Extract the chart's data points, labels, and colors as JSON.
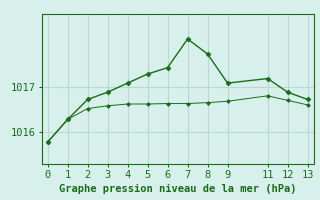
{
  "title": "Graphe pression niveau de la mer (hPa)",
  "background_color": "#d8f0ec",
  "grid_color": "#b8d8d0",
  "line_color": "#1a6b1a",
  "x_values": [
    0,
    1,
    2,
    3,
    4,
    5,
    6,
    7,
    8,
    9,
    11,
    12,
    13
  ],
  "y1_values": [
    1015.78,
    1016.28,
    1016.72,
    1016.88,
    1017.08,
    1017.28,
    1017.42,
    1018.05,
    1017.72,
    1017.08,
    1017.18,
    1016.88,
    1016.72
  ],
  "y2_values": [
    1015.78,
    1016.28,
    1016.52,
    1016.58,
    1016.62,
    1016.62,
    1016.63,
    1016.63,
    1016.65,
    1016.68,
    1016.8,
    1016.7,
    1016.6
  ],
  "yticks": [
    1016,
    1017
  ],
  "ylim": [
    1015.3,
    1018.6
  ],
  "xlim": [
    -0.3,
    13.3
  ],
  "xticks": [
    0,
    1,
    2,
    3,
    4,
    5,
    6,
    7,
    8,
    9,
    11,
    12,
    13
  ],
  "tick_fontsize": 7.5,
  "label_fontsize": 7.5
}
